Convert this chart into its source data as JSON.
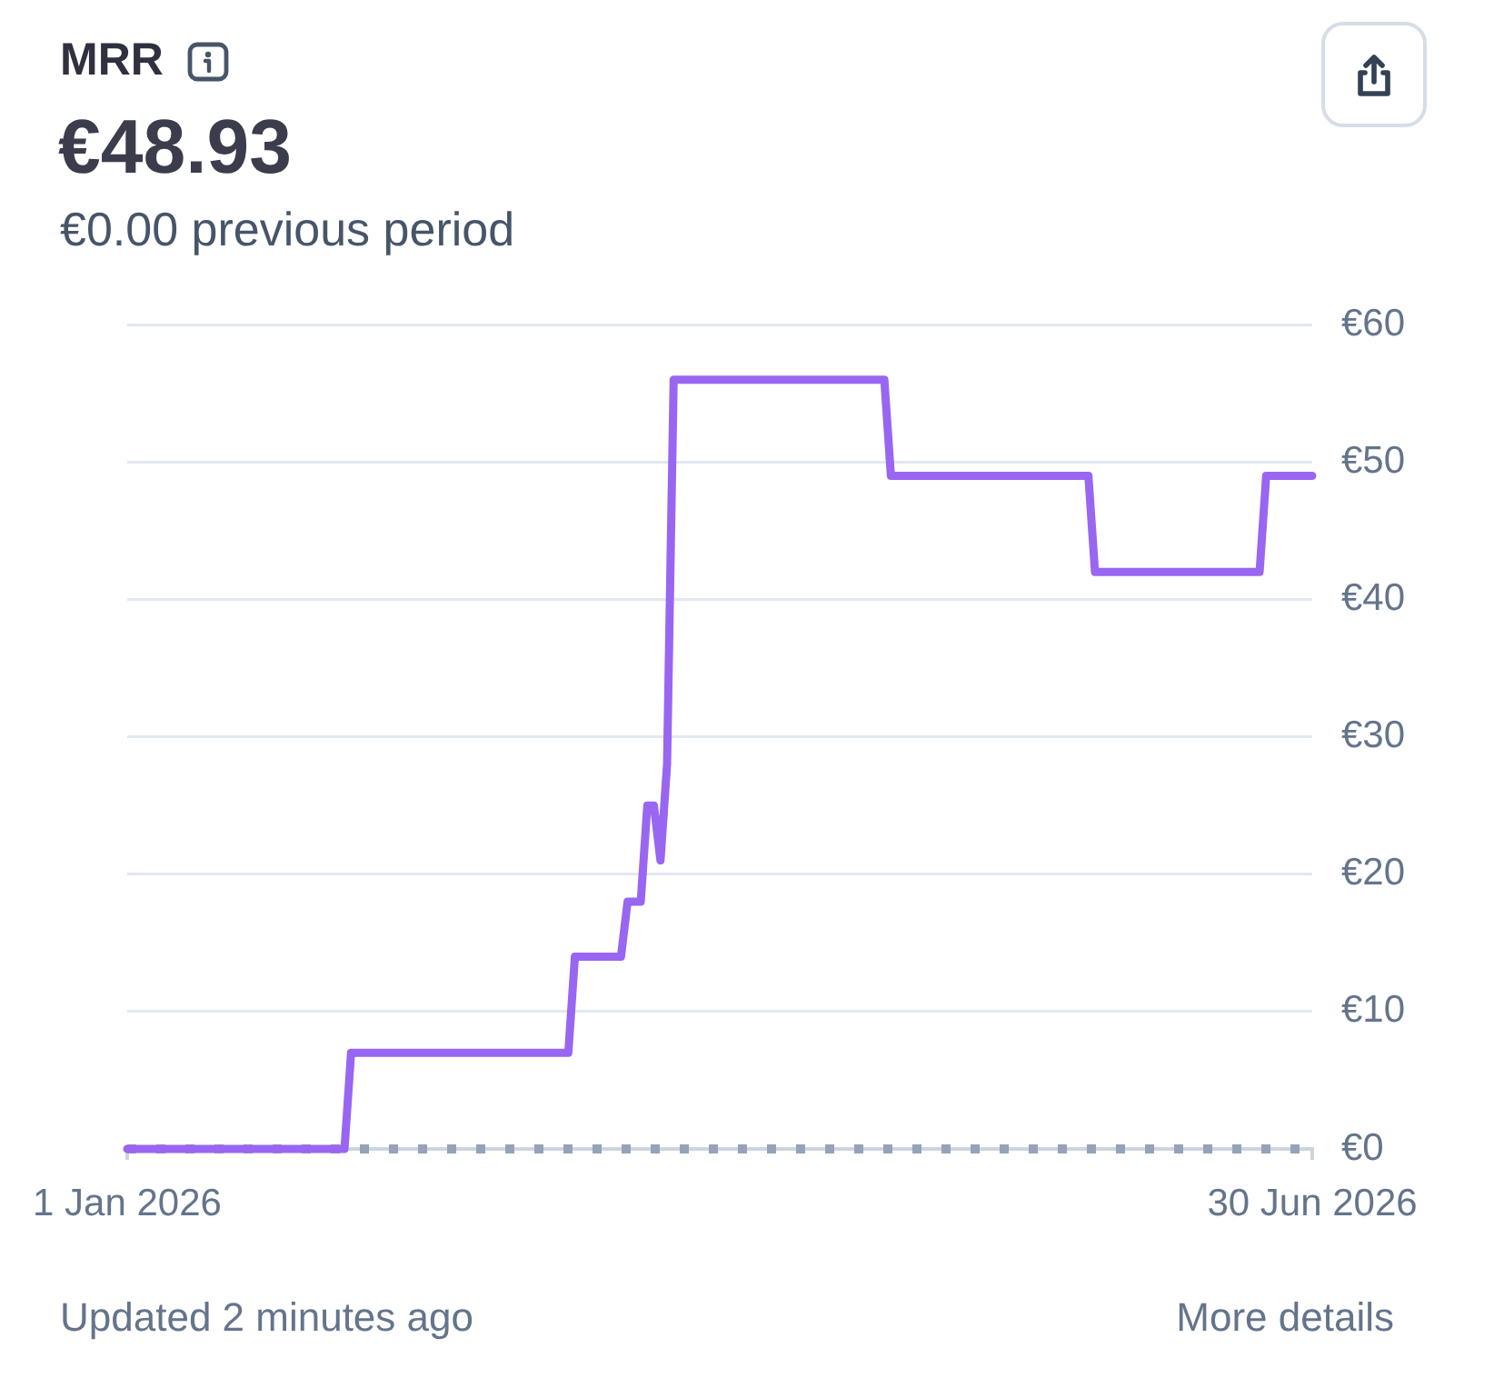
{
  "chart_data": {
    "type": "line",
    "title": "MRR",
    "subtitle": "€48.93",
    "annotations": [
      "€0.00 previous period",
      "Updated 2 minutes ago",
      "More details"
    ],
    "series": [
      {
        "color": "#9966f2",
        "line_style": "solid",
        "x": [
          "2026-01-01",
          "2026-02-03",
          "2026-02-04",
          "2026-03-09",
          "2026-03-10",
          "2026-03-17",
          "2026-03-18",
          "2026-03-20",
          "2026-03-21",
          "2026-03-22",
          "2026-03-23",
          "2026-03-24",
          "2026-03-25",
          "2026-04-26",
          "2026-04-27",
          "2026-05-27",
          "2026-05-28",
          "2026-06-22",
          "2026-06-23",
          "2026-06-30"
        ],
        "values": [
          0,
          0,
          7,
          7,
          14,
          14,
          18,
          18,
          25,
          25,
          21,
          28,
          56,
          56,
          49,
          49,
          42,
          42,
          49,
          49
        ]
      },
      {
        "color": "#94a3b8",
        "line_style": "dashed",
        "x": [
          "2026-01-01",
          "2026-06-30"
        ],
        "values": [
          0,
          0
        ]
      }
    ],
    "xlim": [
      "2026-01-01",
      "2026-06-30"
    ],
    "xticks": [
      {
        "value": "2026-01-01",
        "label": "1 Jan 2026"
      },
      {
        "value": "2026-06-30",
        "label": "30 Jun 2026"
      }
    ],
    "ylim": [
      0,
      60
    ],
    "yticks": [
      {
        "value": 0,
        "label": "€0"
      },
      {
        "value": 10,
        "label": "€10"
      },
      {
        "value": 20,
        "label": "€20"
      },
      {
        "value": 30,
        "label": "€30"
      },
      {
        "value": 40,
        "label": "€40"
      },
      {
        "value": 50,
        "label": "€50"
      },
      {
        "value": 60,
        "label": "€60"
      }
    ],
    "grid": "y",
    "legend": false,
    "marker": "none"
  }
}
